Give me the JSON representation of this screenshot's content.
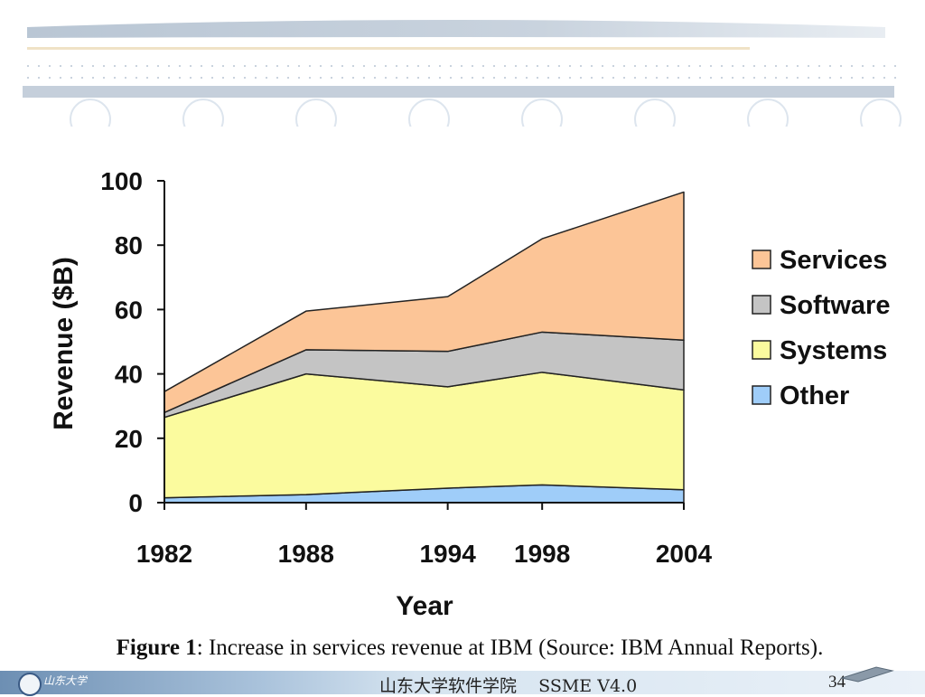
{
  "colors": {
    "services": "#fcc597",
    "software": "#c4c4c4",
    "systems": "#fbfb9e",
    "other": "#9fcdf9",
    "axis": "#111111",
    "header_band": "#c9d4e0"
  },
  "chart_data": {
    "type": "area",
    "stacked": true,
    "x": [
      1982,
      1988,
      1994,
      1998,
      2004
    ],
    "x_tick_labels": [
      "1982",
      "1988",
      "1994",
      "1998",
      "2004"
    ],
    "ylim": [
      0,
      100
    ],
    "y_ticks": [
      0,
      20,
      40,
      60,
      80,
      100
    ],
    "y_tick_labels": [
      "0",
      "20",
      "40",
      "60",
      "80",
      "100"
    ],
    "xlabel": "Year",
    "ylabel": "Revenue ($B)",
    "grid": false,
    "legend_position": "right",
    "series": [
      {
        "name": "Other",
        "color_key": "other",
        "values": [
          1.5,
          2.5,
          4.5,
          5.5,
          4
        ]
      },
      {
        "name": "Systems",
        "color_key": "systems",
        "values": [
          25,
          37.5,
          31.5,
          35,
          31
        ]
      },
      {
        "name": "Software",
        "color_key": "software",
        "values": [
          1.5,
          7.5,
          11,
          12.5,
          15.5
        ]
      },
      {
        "name": "Services",
        "color_key": "services",
        "values": [
          6.5,
          12,
          17,
          29,
          46
        ]
      }
    ],
    "legend": [
      "Services",
      "Software",
      "Systems",
      "Other"
    ]
  },
  "caption": {
    "label": "Figure 1",
    "text": ": Increase in services revenue at IBM (Source: IBM Annual Reports)."
  },
  "footer": {
    "center": "山东大学软件学院    SSME V4.0",
    "page": "34",
    "logo_text": "山东大学"
  }
}
